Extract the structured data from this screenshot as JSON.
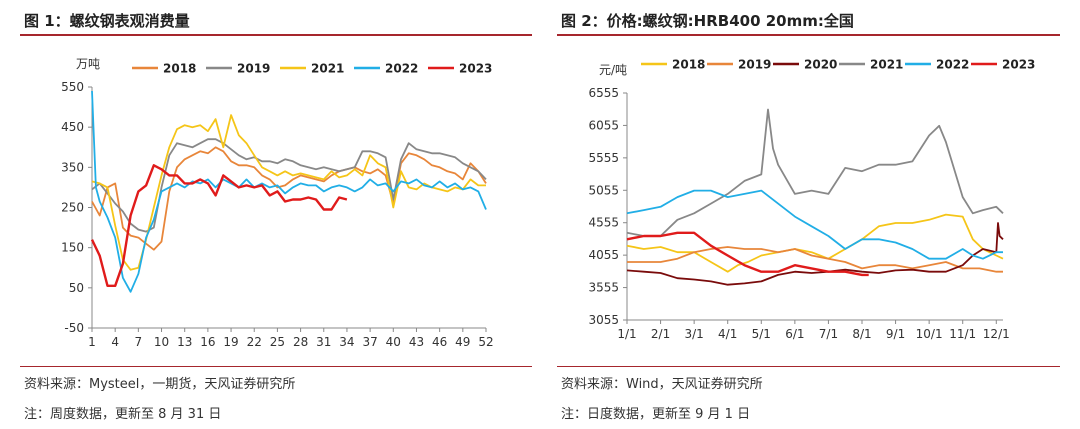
{
  "panels": {
    "left": {
      "title": "图 1：螺纹钢表观消费量",
      "source": "资料来源：Mysteel，一期货，天风证券研究所",
      "note": "注：周度数据，更新至 8 月 31 日"
    },
    "right": {
      "title": "图 2：价格:螺纹钢:HRB400 20mm:全国",
      "source": "资料来源：Wind，天风证券研究所",
      "note": "注：日度数据，更新至 9 月 1 日"
    }
  },
  "chart_data": [
    {
      "type": "line",
      "unit_label": "万吨",
      "ylim": [
        -50,
        550
      ],
      "yticks": [
        -50,
        50,
        150,
        250,
        350,
        450,
        550
      ],
      "xlim": [
        1,
        52
      ],
      "xticks": [
        1,
        4,
        7,
        10,
        13,
        16,
        19,
        22,
        25,
        28,
        31,
        34,
        37,
        40,
        43,
        46,
        49,
        52
      ],
      "legend_position": "top",
      "series": [
        {
          "name": "2018",
          "color": "#e8863a",
          "x": [
            1,
            2,
            3,
            4,
            5,
            6,
            7,
            8,
            9,
            10,
            11,
            12,
            13,
            14,
            15,
            16,
            17,
            18,
            19,
            20,
            21,
            22,
            23,
            24,
            25,
            26,
            27,
            28,
            29,
            30,
            31,
            32,
            33,
            34,
            35,
            36,
            37,
            38,
            39,
            40,
            41,
            42,
            43,
            44,
            45,
            46,
            47,
            48,
            49,
            50,
            51,
            52
          ],
          "values": [
            265,
            230,
            300,
            310,
            200,
            180,
            175,
            160,
            145,
            165,
            290,
            350,
            370,
            380,
            390,
            385,
            400,
            390,
            365,
            355,
            355,
            350,
            330,
            320,
            300,
            305,
            320,
            330,
            325,
            320,
            315,
            330,
            340,
            345,
            350,
            340,
            335,
            345,
            330,
            260,
            360,
            385,
            380,
            370,
            355,
            350,
            340,
            335,
            320,
            360,
            340,
            310
          ]
        },
        {
          "name": "2019",
          "color": "#888888",
          "x": [
            1,
            2,
            3,
            4,
            5,
            6,
            7,
            8,
            9,
            10,
            11,
            12,
            13,
            14,
            15,
            16,
            17,
            18,
            19,
            20,
            21,
            22,
            23,
            24,
            25,
            26,
            27,
            28,
            29,
            30,
            31,
            32,
            33,
            34,
            35,
            36,
            37,
            38,
            39,
            40,
            41,
            42,
            43,
            44,
            45,
            46,
            47,
            48,
            49,
            50,
            51,
            52
          ],
          "values": [
            295,
            310,
            285,
            260,
            240,
            210,
            195,
            190,
            200,
            300,
            380,
            410,
            405,
            400,
            410,
            420,
            420,
            410,
            395,
            380,
            370,
            375,
            365,
            365,
            360,
            370,
            365,
            355,
            350,
            345,
            350,
            345,
            340,
            345,
            350,
            390,
            390,
            385,
            375,
            270,
            370,
            410,
            395,
            390,
            385,
            385,
            380,
            375,
            360,
            350,
            340,
            320
          ]
        },
        {
          "name": "2021",
          "color": "#f5c518",
          "x": [
            1,
            2,
            3,
            4,
            5,
            6,
            7,
            8,
            9,
            10,
            11,
            12,
            13,
            14,
            15,
            16,
            17,
            18,
            19,
            20,
            21,
            22,
            23,
            24,
            25,
            26,
            27,
            28,
            29,
            30,
            31,
            32,
            33,
            34,
            35,
            36,
            37,
            38,
            39,
            40,
            41,
            42,
            43,
            44,
            45,
            46,
            47,
            48,
            49,
            50,
            51,
            52
          ],
          "values": [
            315,
            310,
            300,
            205,
            120,
            95,
            100,
            170,
            250,
            330,
            400,
            445,
            455,
            450,
            455,
            440,
            470,
            400,
            480,
            430,
            410,
            380,
            350,
            340,
            330,
            340,
            330,
            335,
            330,
            325,
            320,
            340,
            325,
            330,
            345,
            330,
            380,
            360,
            350,
            250,
            340,
            300,
            295,
            310,
            300,
            295,
            290,
            300,
            295,
            320,
            305,
            305
          ]
        },
        {
          "name": "2022",
          "color": "#21aee6",
          "x": [
            1,
            1.5,
            2,
            3,
            4,
            5,
            6,
            7,
            8,
            9,
            10,
            11,
            12,
            13,
            14,
            15,
            16,
            17,
            18,
            19,
            20,
            21,
            22,
            23,
            24,
            25,
            26,
            27,
            28,
            29,
            30,
            31,
            32,
            33,
            34,
            35,
            36,
            37,
            38,
            39,
            40,
            41,
            42,
            43,
            44,
            45,
            46,
            47,
            48,
            49,
            50,
            51,
            52
          ],
          "values": [
            540,
            300,
            265,
            225,
            175,
            75,
            40,
            85,
            175,
            220,
            290,
            300,
            310,
            300,
            315,
            310,
            320,
            300,
            320,
            310,
            300,
            320,
            300,
            310,
            300,
            305,
            285,
            300,
            310,
            305,
            305,
            290,
            300,
            305,
            300,
            290,
            300,
            320,
            305,
            310,
            290,
            315,
            310,
            320,
            305,
            300,
            315,
            300,
            310,
            295,
            300,
            290,
            245
          ]
        },
        {
          "name": "2023",
          "color": "#e01b1b",
          "x": [
            1,
            2,
            3,
            4,
            5,
            6,
            7,
            8,
            9,
            10,
            11,
            12,
            13,
            14,
            15,
            16,
            17,
            18,
            19,
            20,
            21,
            22,
            23,
            24,
            25,
            26,
            27,
            28,
            29,
            30,
            31,
            32,
            33,
            34
          ],
          "values": [
            170,
            130,
            55,
            55,
            110,
            230,
            290,
            305,
            355,
            345,
            330,
            330,
            310,
            310,
            320,
            310,
            280,
            330,
            315,
            300,
            305,
            300,
            305,
            280,
            290,
            265,
            270,
            270,
            275,
            270,
            245,
            245,
            275,
            270
          ]
        }
      ]
    },
    {
      "type": "line",
      "unit_label": "元/吨",
      "ylim": [
        3055,
        6555
      ],
      "yticks": [
        3055,
        3555,
        4055,
        4555,
        5055,
        5555,
        6055,
        6555
      ],
      "xlim": [
        1,
        12.2
      ],
      "xticks": [
        "1/1",
        "2/1",
        "3/1",
        "4/1",
        "5/1",
        "6/1",
        "7/1",
        "8/1",
        "9/1",
        "10/1",
        "11/1",
        "12/1"
      ],
      "legend_position": "top",
      "series": [
        {
          "name": "2018",
          "color": "#f5c518",
          "x": [
            1,
            1.5,
            2,
            2.5,
            3,
            3.5,
            4,
            4.3,
            4.6,
            5,
            5.5,
            6,
            6.5,
            7,
            7.5,
            8,
            8.5,
            9,
            9.5,
            10,
            10.5,
            11,
            11.3,
            11.6,
            12,
            12.2
          ],
          "values": [
            4200,
            4150,
            4180,
            4100,
            4100,
            3950,
            3800,
            3900,
            3950,
            4050,
            4100,
            4150,
            4100,
            4000,
            4150,
            4300,
            4500,
            4550,
            4550,
            4600,
            4680,
            4650,
            4300,
            4150,
            4050,
            4000
          ]
        },
        {
          "name": "2019",
          "color": "#e8863a",
          "x": [
            1,
            1.5,
            2,
            2.5,
            3,
            3.5,
            4,
            4.5,
            5,
            5.5,
            6,
            6.5,
            7,
            7.5,
            8,
            8.5,
            9,
            9.5,
            10,
            10.5,
            11,
            11.5,
            12,
            12.2
          ],
          "values": [
            3950,
            3950,
            3950,
            4000,
            4100,
            4150,
            4180,
            4150,
            4150,
            4100,
            4150,
            4050,
            4000,
            3950,
            3850,
            3900,
            3900,
            3850,
            3900,
            3950,
            3850,
            3850,
            3800,
            3800
          ]
        },
        {
          "name": "2020",
          "color": "#7a0b0b",
          "x": [
            1,
            1.5,
            2,
            2.5,
            3,
            3.5,
            4,
            4.5,
            5,
            5.5,
            6,
            6.5,
            7,
            7.5,
            8,
            8.5,
            9,
            9.5,
            10,
            10.5,
            11,
            11.3,
            11.6,
            12,
            12.05,
            12.1,
            12.2
          ],
          "values": [
            3820,
            3800,
            3780,
            3700,
            3680,
            3650,
            3600,
            3620,
            3650,
            3750,
            3800,
            3780,
            3800,
            3830,
            3800,
            3780,
            3820,
            3830,
            3800,
            3800,
            3900,
            4050,
            4150,
            4100,
            4550,
            4350,
            4300
          ]
        },
        {
          "name": "2021",
          "color": "#888888",
          "x": [
            1,
            1.5,
            2,
            2.5,
            3,
            3.5,
            4,
            4.5,
            5,
            5.2,
            5.35,
            5.5,
            6,
            6.5,
            7,
            7.5,
            8,
            8.5,
            9,
            9.5,
            10,
            10.3,
            10.5,
            11,
            11.3,
            11.6,
            12,
            12.2
          ],
          "values": [
            4400,
            4350,
            4350,
            4600,
            4700,
            4850,
            5000,
            5200,
            5300,
            6300,
            5700,
            5450,
            5000,
            5050,
            5000,
            5400,
            5350,
            5450,
            5450,
            5500,
            5900,
            6050,
            5800,
            4950,
            4700,
            4750,
            4800,
            4700
          ]
        },
        {
          "name": "2022",
          "color": "#21aee6",
          "x": [
            1,
            1.5,
            2,
            2.5,
            3,
            3.5,
            4,
            4.5,
            5,
            5.5,
            6,
            6.5,
            7,
            7.5,
            8,
            8.5,
            9,
            9.5,
            10,
            10.5,
            11,
            11.3,
            11.6,
            12,
            12.2
          ],
          "values": [
            4700,
            4750,
            4800,
            4950,
            5050,
            5050,
            4950,
            5000,
            5050,
            4850,
            4650,
            4500,
            4350,
            4150,
            4300,
            4300,
            4250,
            4150,
            4000,
            4000,
            4150,
            4050,
            4000,
            4100,
            4100
          ]
        },
        {
          "name": "2023",
          "color": "#e01b1b",
          "x": [
            1,
            1.5,
            2,
            2.5,
            3,
            3.5,
            4,
            4.5,
            5,
            5.5,
            6,
            6.5,
            7,
            7.5,
            8,
            8.2
          ],
          "values": [
            4300,
            4350,
            4350,
            4400,
            4400,
            4200,
            4050,
            3900,
            3800,
            3800,
            3900,
            3850,
            3800,
            3800,
            3750,
            3750
          ]
        }
      ]
    }
  ]
}
